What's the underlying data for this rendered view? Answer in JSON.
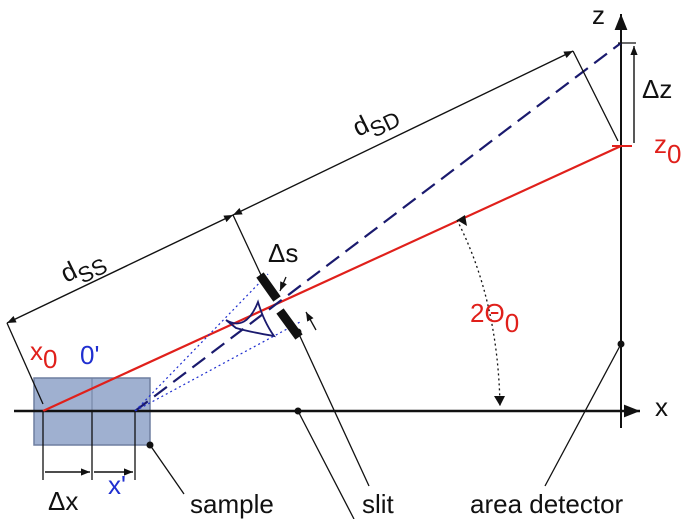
{
  "colors": {
    "beam": "#e0201b",
    "dashed_beam": "#1a1a6e",
    "sample_fill": "#9fb0d0",
    "axis": "#111111",
    "blue_label": "#1f2fd0"
  },
  "labels": {
    "z_axis": "z",
    "x_axis": "x",
    "delta_z": "Δz",
    "z0_main": "z",
    "z0_sub": "0",
    "d_sd_main": "d",
    "d_sd_sub": "SD",
    "d_ss_main": "d",
    "d_ss_sub": "SS",
    "delta_s": "Δs",
    "two_theta_main": "2Θ",
    "two_theta_sub": "0",
    "x0_main": "x",
    "x0_sub": "0",
    "zero_prime": "0'",
    "delta_x": "Δx",
    "x_prime": "x'",
    "sample": "sample",
    "slit": "slit",
    "area_detector": "area detector"
  }
}
